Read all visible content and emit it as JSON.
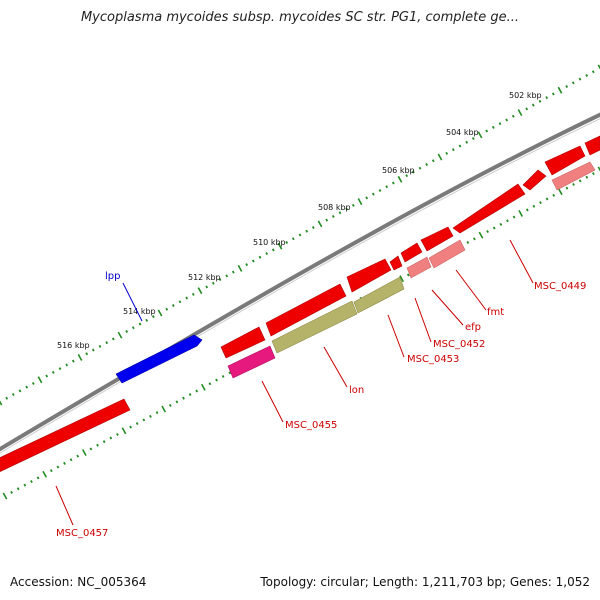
{
  "title": "Mycoplasma mycoides subsp. mycoides SC str. PG1, complete ge...",
  "footer": {
    "accession": "Accession: NC_005364",
    "summary": "Topology: circular; Length: 1,211,703 bp; Genes: 1,052"
  },
  "colors": {
    "backbone": "#7a7a7a",
    "tick": "#228b22",
    "cds": "#ee0000",
    "cds_light": "#f08080",
    "lon": "#b5b36a",
    "rna": "#e6197f",
    "lpp": "#0000ee",
    "label_red": "#cc0000",
    "label_blue": "#0000cc"
  },
  "kbp_labels": [
    "502 kbp",
    "504 kbp",
    "506 kbp",
    "508 kbp",
    "510 kbp",
    "512 kbp",
    "514 kbp",
    "516 kbp"
  ],
  "gene_labels": {
    "lpp": "lpp",
    "msc_0449": "MSC_0449",
    "fmt": "fmt",
    "efp": "efp",
    "msc_0452": "MSC_0452",
    "msc_0453": "MSC_0453",
    "lon": "lon",
    "msc_0455": "MSC_0455",
    "msc_0457": "MSC_0457"
  }
}
